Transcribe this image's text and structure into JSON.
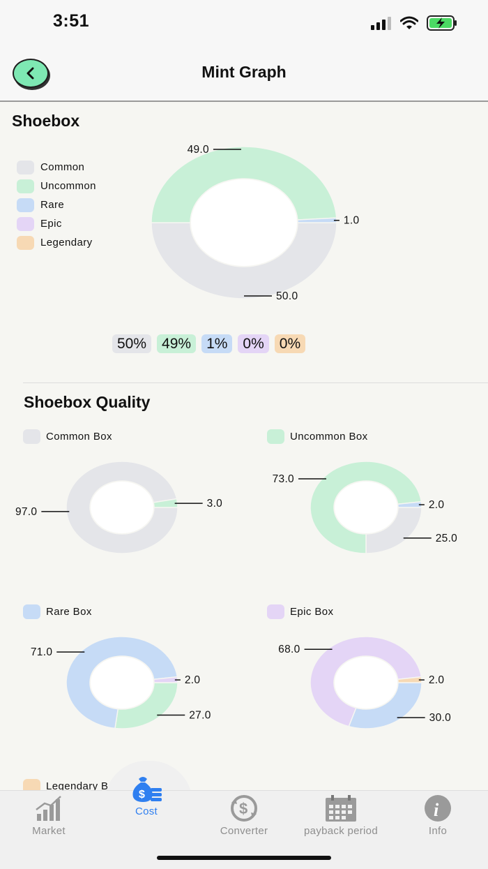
{
  "status": {
    "time": "3:51"
  },
  "header": {
    "title": "Mint Graph"
  },
  "colors": {
    "common": "#e4e5e9",
    "uncommon": "#c8f0d7",
    "rare": "#c6dbf6",
    "epic": "#e4d5f6",
    "legendary": "#f7d9b4",
    "accent": "#2f7ff0",
    "back_button": "#7ee8b3"
  },
  "shoebox": {
    "title": "Shoebox",
    "legend": [
      "Common",
      "Uncommon",
      "Rare",
      "Epic",
      "Legendary"
    ],
    "percent_badges": [
      "50%",
      "49%",
      "1%",
      "0%",
      "0%"
    ]
  },
  "quality": {
    "title": "Shoebox Quality"
  },
  "partial_legend_label": "Legendary B",
  "chart_data": [
    {
      "type": "pie",
      "name": "Shoebox",
      "donut": true,
      "categories": [
        "Common",
        "Uncommon",
        "Rare",
        "Epic",
        "Legendary"
      ],
      "values": [
        50.0,
        49.0,
        1.0,
        0,
        0
      ],
      "labels": [
        "50.0",
        "49.0",
        "1.0"
      ]
    },
    {
      "type": "pie",
      "name": "Common Box",
      "donut": true,
      "categories": [
        "Common",
        "Uncommon"
      ],
      "values": [
        97.0,
        3.0
      ],
      "labels": [
        "97.0",
        "3.0"
      ]
    },
    {
      "type": "pie",
      "name": "Uncommon Box",
      "donut": true,
      "categories": [
        "Common",
        "Uncommon",
        "Rare"
      ],
      "values": [
        25.0,
        73.0,
        2.0
      ],
      "labels": [
        "25.0",
        "73.0",
        "2.0"
      ]
    },
    {
      "type": "pie",
      "name": "Rare Box",
      "donut": true,
      "categories": [
        "Uncommon",
        "Rare",
        "Epic"
      ],
      "values": [
        27.0,
        71.0,
        2.0
      ],
      "labels": [
        "27.0",
        "71.0",
        "2.0"
      ]
    },
    {
      "type": "pie",
      "name": "Epic Box",
      "donut": true,
      "categories": [
        "Rare",
        "Epic",
        "Legendary"
      ],
      "values": [
        30.0,
        68.0,
        2.0
      ],
      "labels": [
        "30.0",
        "68.0",
        "2.0"
      ]
    }
  ],
  "tabs": [
    {
      "label": "Market",
      "icon": "bar-chart-icon",
      "active": false
    },
    {
      "label": "Cost",
      "icon": "money-bag-icon",
      "active": true
    },
    {
      "label": "Converter",
      "icon": "currency-exchange-icon",
      "active": false
    },
    {
      "label": "payback period",
      "icon": "calendar-icon",
      "active": false
    },
    {
      "label": "Info",
      "icon": "info-icon",
      "active": false
    }
  ]
}
